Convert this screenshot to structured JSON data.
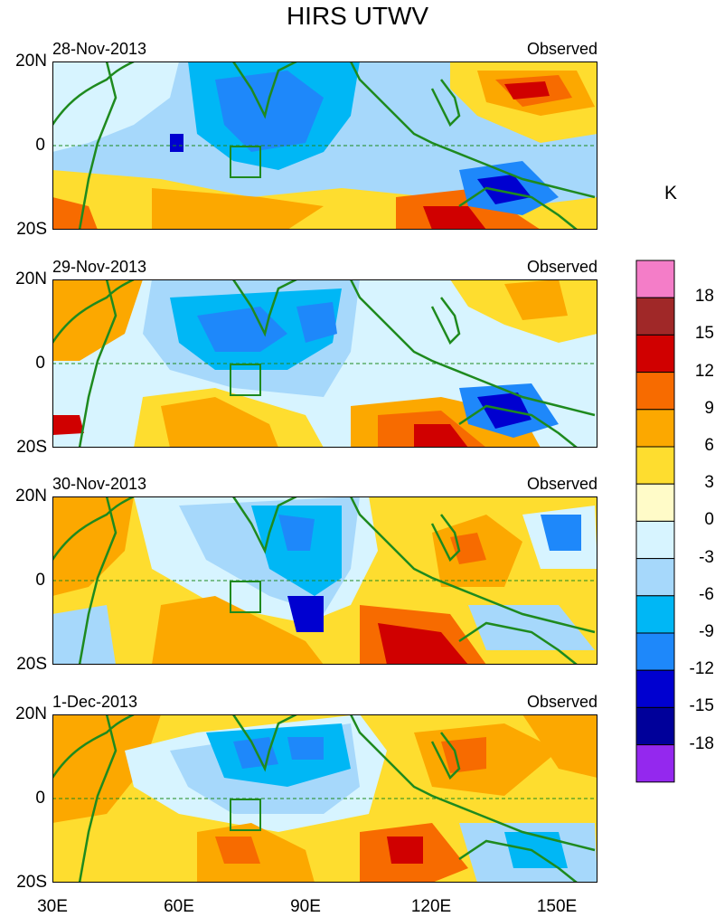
{
  "figure": {
    "title": "HIRS UTWV",
    "panels": [
      {
        "date": "28-Nov-2013",
        "label": "Observed"
      },
      {
        "date": "29-Nov-2013",
        "label": "Observed"
      },
      {
        "date": "30-Nov-2013",
        "label": "Observed"
      },
      {
        "date": "1-Dec-2013",
        "label": "Observed"
      }
    ],
    "lat_labels": {
      "north": "20N",
      "equator": "0",
      "south": "20S"
    },
    "lon_labels": [
      "30E",
      "60E",
      "90E",
      "120E",
      "150E"
    ],
    "colors": {
      "coast": "#1e8a1e",
      "equator_line": "#1e8a1e",
      "box": "#1e8a1e"
    }
  },
  "colorbar": {
    "unit": "K",
    "labels": [
      "18",
      "15",
      "12",
      "9",
      "6",
      "3",
      "0",
      "-3",
      "-6",
      "-9",
      "-12",
      "-15",
      "-18"
    ],
    "colors": [
      "#f47dc8",
      "#a02828",
      "#d00000",
      "#f76b00",
      "#fca800",
      "#fedd2f",
      "#fffbc8",
      "#d7f4ff",
      "#a6d8fb",
      "#00b7f5",
      "#1e88fa",
      "#0000d0",
      "#00009a",
      "#9428ee"
    ]
  }
}
